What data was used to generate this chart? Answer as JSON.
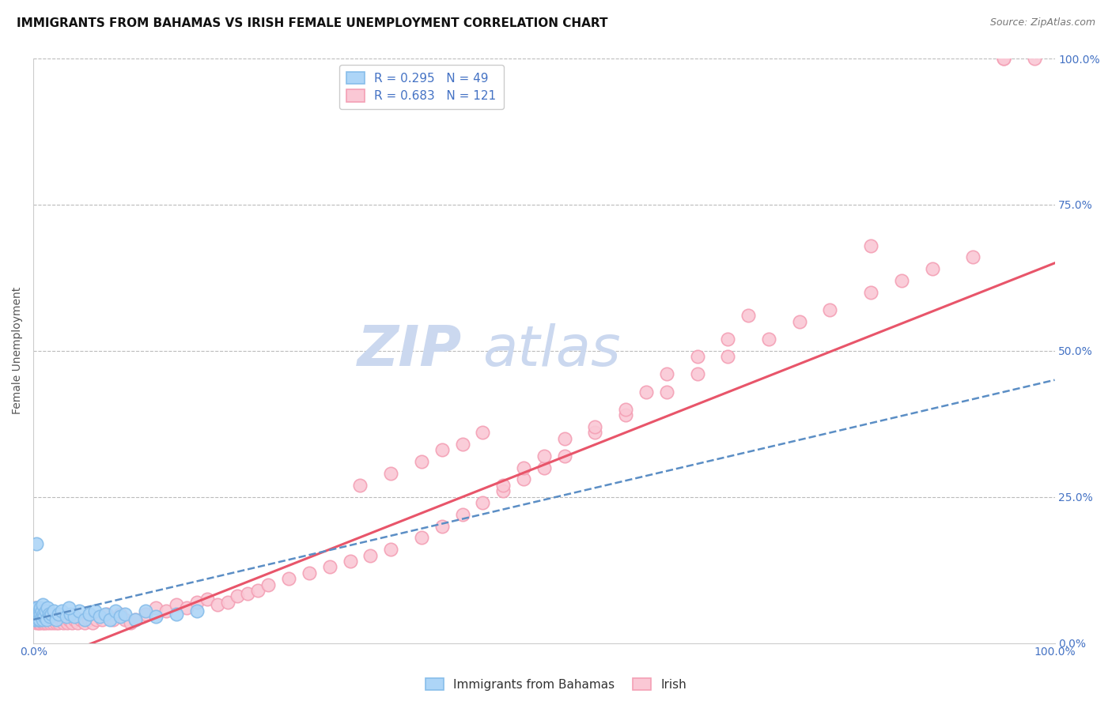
{
  "title": "IMMIGRANTS FROM BAHAMAS VS IRISH FEMALE UNEMPLOYMENT CORRELATION CHART",
  "source": "Source: ZipAtlas.com",
  "ylabel": "Female Unemployment",
  "xlim": [
    0,
    1.0
  ],
  "ylim": [
    0,
    1.0
  ],
  "legend1_label": "R = 0.295   N = 49",
  "legend2_label": "R = 0.683   N = 121",
  "legend_bottom_label1": "Immigrants from Bahamas",
  "legend_bottom_label2": "Irish",
  "blue_color": "#87BDEA",
  "blue_face_color": "#ADD5F7",
  "pink_color": "#F4A0B5",
  "pink_face_color": "#FAC8D5",
  "regression_blue_color": "#5B8EC5",
  "regression_pink_color": "#E8556A",
  "grid_color": "#BBBBBB",
  "watermark_color": "#CBD8EF",
  "background_color": "#ffffff",
  "blue_scatter_x": [
    0.001,
    0.002,
    0.002,
    0.003,
    0.003,
    0.004,
    0.004,
    0.005,
    0.005,
    0.006,
    0.006,
    0.007,
    0.007,
    0.008,
    0.008,
    0.009,
    0.009,
    0.01,
    0.011,
    0.012,
    0.013,
    0.014,
    0.015,
    0.016,
    0.018,
    0.02,
    0.022,
    0.025,
    0.028,
    0.032,
    0.036,
    0.04,
    0.045,
    0.05,
    0.055,
    0.06,
    0.065,
    0.07,
    0.075,
    0.08,
    0.085,
    0.09,
    0.1,
    0.11,
    0.12,
    0.14,
    0.16,
    0.003,
    0.035
  ],
  "blue_scatter_y": [
    0.04,
    0.05,
    0.06,
    0.04,
    0.05,
    0.045,
    0.06,
    0.05,
    0.04,
    0.055,
    0.04,
    0.05,
    0.06,
    0.045,
    0.055,
    0.04,
    0.065,
    0.05,
    0.045,
    0.055,
    0.04,
    0.06,
    0.05,
    0.045,
    0.05,
    0.055,
    0.04,
    0.05,
    0.055,
    0.045,
    0.05,
    0.045,
    0.055,
    0.04,
    0.05,
    0.055,
    0.045,
    0.05,
    0.04,
    0.055,
    0.045,
    0.05,
    0.04,
    0.055,
    0.045,
    0.05,
    0.055,
    0.17,
    0.06
  ],
  "pink_scatter_x": [
    0.001,
    0.001,
    0.002,
    0.002,
    0.002,
    0.003,
    0.003,
    0.003,
    0.004,
    0.004,
    0.004,
    0.005,
    0.005,
    0.005,
    0.006,
    0.006,
    0.006,
    0.007,
    0.007,
    0.008,
    0.008,
    0.009,
    0.009,
    0.01,
    0.01,
    0.011,
    0.011,
    0.012,
    0.012,
    0.013,
    0.014,
    0.015,
    0.016,
    0.017,
    0.018,
    0.019,
    0.02,
    0.021,
    0.022,
    0.023,
    0.025,
    0.027,
    0.029,
    0.031,
    0.033,
    0.035,
    0.038,
    0.04,
    0.043,
    0.046,
    0.05,
    0.054,
    0.058,
    0.062,
    0.067,
    0.072,
    0.078,
    0.085,
    0.09,
    0.095,
    0.1,
    0.11,
    0.12,
    0.13,
    0.14,
    0.15,
    0.16,
    0.17,
    0.18,
    0.19,
    0.2,
    0.21,
    0.22,
    0.23,
    0.25,
    0.27,
    0.29,
    0.31,
    0.33,
    0.35,
    0.38,
    0.4,
    0.42,
    0.44,
    0.46,
    0.48,
    0.5,
    0.52,
    0.55,
    0.58,
    0.62,
    0.65,
    0.68,
    0.72,
    0.75,
    0.78,
    0.82,
    0.85,
    0.88,
    0.92,
    0.95,
    0.95,
    0.98,
    0.32,
    0.35,
    0.38,
    0.4,
    0.42,
    0.44,
    0.46,
    0.48,
    0.5,
    0.52,
    0.55,
    0.58,
    0.6,
    0.62,
    0.65,
    0.68,
    0.7,
    0.82
  ],
  "pink_scatter_y": [
    0.04,
    0.05,
    0.04,
    0.05,
    0.06,
    0.035,
    0.045,
    0.055,
    0.04,
    0.05,
    0.06,
    0.035,
    0.045,
    0.055,
    0.04,
    0.05,
    0.035,
    0.045,
    0.055,
    0.04,
    0.05,
    0.035,
    0.045,
    0.04,
    0.05,
    0.035,
    0.045,
    0.04,
    0.05,
    0.035,
    0.045,
    0.04,
    0.035,
    0.045,
    0.04,
    0.035,
    0.04,
    0.045,
    0.035,
    0.04,
    0.035,
    0.04,
    0.035,
    0.04,
    0.035,
    0.04,
    0.035,
    0.04,
    0.035,
    0.04,
    0.035,
    0.04,
    0.035,
    0.04,
    0.04,
    0.05,
    0.04,
    0.05,
    0.04,
    0.035,
    0.04,
    0.05,
    0.06,
    0.055,
    0.065,
    0.06,
    0.07,
    0.075,
    0.065,
    0.07,
    0.08,
    0.085,
    0.09,
    0.1,
    0.11,
    0.12,
    0.13,
    0.14,
    0.15,
    0.16,
    0.18,
    0.2,
    0.22,
    0.24,
    0.26,
    0.28,
    0.3,
    0.32,
    0.36,
    0.39,
    0.43,
    0.46,
    0.49,
    0.52,
    0.55,
    0.57,
    0.6,
    0.62,
    0.64,
    0.66,
    1.0,
    1.0,
    1.0,
    0.27,
    0.29,
    0.31,
    0.33,
    0.34,
    0.36,
    0.27,
    0.3,
    0.32,
    0.35,
    0.37,
    0.4,
    0.43,
    0.46,
    0.49,
    0.52,
    0.56,
    0.68
  ],
  "title_fontsize": 11,
  "axis_label_fontsize": 10,
  "tick_fontsize": 10,
  "legend_fontsize": 11,
  "watermark_fontsize": 52
}
